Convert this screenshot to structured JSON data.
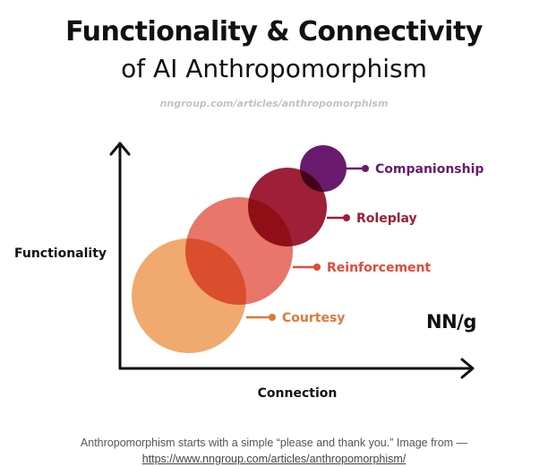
{
  "header": {
    "title": "Functionality & Connectivity",
    "subtitle": "of AI Anthropomorphism",
    "source": "nngroup.com/articles/anthropomorphism"
  },
  "diagram": {
    "y_axis_label": "Functionality",
    "x_axis_label": "Connection",
    "logo_text": "NN/g",
    "circles": [
      {
        "name": "courtesy",
        "label": "Courtesy",
        "color": "#f0a96e",
        "label_color": "#e0773a"
      },
      {
        "name": "reinforcement",
        "label": "Reinforcement",
        "color": "#e8766a",
        "label_color": "#e04a3a"
      },
      {
        "name": "roleplay",
        "label": "Roleplay",
        "color": "#9e1f37",
        "label_color": "#9e1f37"
      },
      {
        "name": "companionship",
        "label": "Companionship",
        "color": "#6a1a6e",
        "label_color": "#6a1a6e"
      }
    ]
  },
  "caption": {
    "text": "Anthropomorphism starts with a simple “please and thank you.” Image from —",
    "link": "https://www.nngroup.com/articles/anthropomorphism/"
  }
}
